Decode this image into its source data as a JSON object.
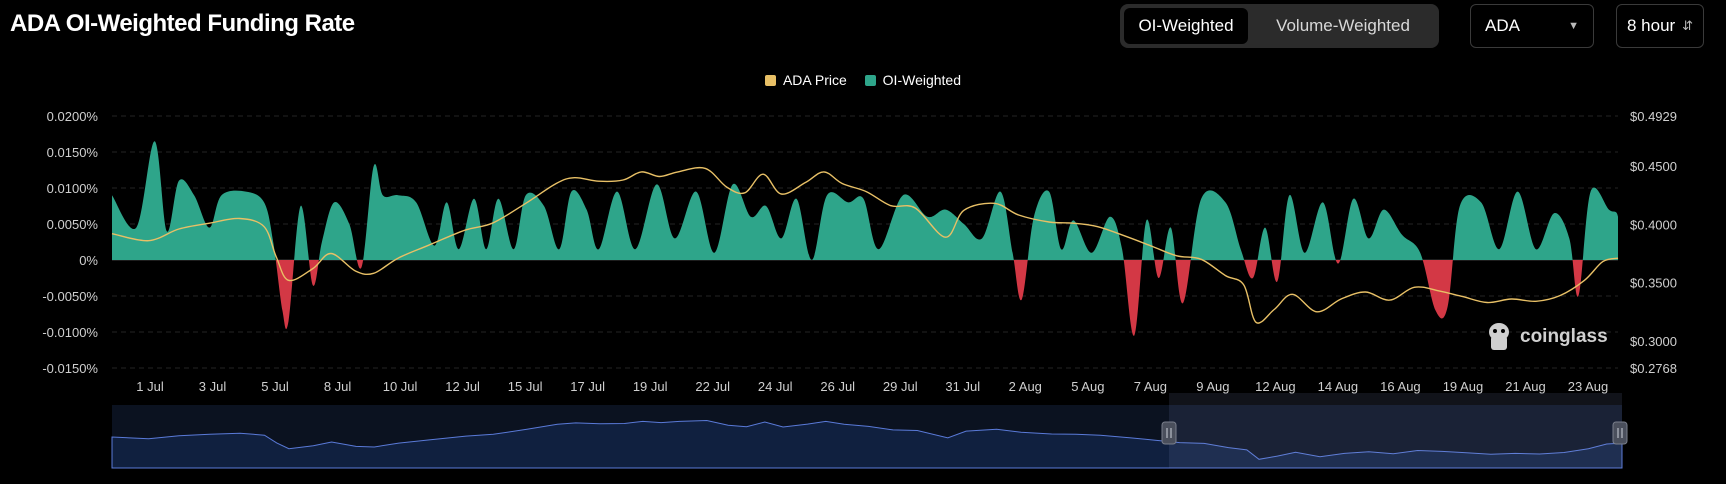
{
  "title": "ADA OI-Weighted Funding Rate",
  "toggle": {
    "options": [
      "OI-Weighted",
      "Volume-Weighted"
    ],
    "active": "OI-Weighted"
  },
  "symbol_select": {
    "value": "ADA"
  },
  "interval_select": {
    "value": "8 hour"
  },
  "watermark": "coinglass",
  "colors": {
    "positive": "#2ea58a",
    "negative": "#d33845",
    "price": "#e8c066",
    "navigator": "#5a7ad8"
  },
  "chart_data": {
    "type": "area",
    "legend": [
      "ADA Price",
      "OI-Weighted"
    ],
    "legend_placement": "top-center",
    "grid": true,
    "x_labels": [
      "1 Jul",
      "3 Jul",
      "5 Jul",
      "8 Jul",
      "10 Jul",
      "12 Jul",
      "15 Jul",
      "17 Jul",
      "19 Jul",
      "22 Jul",
      "24 Jul",
      "26 Jul",
      "29 Jul",
      "31 Jul",
      "2 Aug",
      "5 Aug",
      "7 Aug",
      "9 Aug",
      "12 Aug",
      "14 Aug",
      "16 Aug",
      "19 Aug",
      "21 Aug",
      "23 Aug"
    ],
    "y_left": {
      "ticks": [
        "0.0200%",
        "0.0150%",
        "0.0100%",
        "0.0050%",
        "0%",
        "-0.0050%",
        "-0.0100%",
        "-0.0150%"
      ],
      "min": -0.015,
      "max": 0.02
    },
    "y_right": {
      "ticks": [
        "$0.4929",
        "$0.4500",
        "$0.4000",
        "$0.3500",
        "$0.3000",
        "$0.2768"
      ],
      "min": 0.2768,
      "max": 0.4929
    },
    "series": [
      {
        "name": "OI-Weighted",
        "unit": "%",
        "points": [
          [
            0,
            0.009
          ],
          [
            0.8,
            0.0045
          ],
          [
            1.4,
            0.0165
          ],
          [
            1.8,
            0.004
          ],
          [
            2.2,
            0.011
          ],
          [
            2.7,
            0.009
          ],
          [
            3.2,
            0.0045
          ],
          [
            3.6,
            0.009
          ],
          [
            4.4,
            0.0095
          ],
          [
            5.0,
            0.008
          ],
          [
            5.3,
            0.0025
          ],
          [
            5.6,
            -0.007
          ],
          [
            5.8,
            -0.0085
          ],
          [
            6.2,
            0.0075
          ],
          [
            6.6,
            -0.0035
          ],
          [
            6.9,
            0.0025
          ],
          [
            7.3,
            0.008
          ],
          [
            7.8,
            0.005
          ],
          [
            8.2,
            -0.001
          ],
          [
            8.6,
            0.013
          ],
          [
            8.9,
            0.009
          ],
          [
            9.4,
            0.009
          ],
          [
            10.0,
            0.008
          ],
          [
            10.6,
            0.002
          ],
          [
            11.0,
            0.008
          ],
          [
            11.4,
            0.0015
          ],
          [
            11.9,
            0.0085
          ],
          [
            12.3,
            0.0015
          ],
          [
            12.7,
            0.0085
          ],
          [
            13.2,
            0.0015
          ],
          [
            13.6,
            0.009
          ],
          [
            14.2,
            0.0075
          ],
          [
            14.7,
            0.0015
          ],
          [
            15.1,
            0.0095
          ],
          [
            15.6,
            0.007
          ],
          [
            16.0,
            0.0015
          ],
          [
            16.6,
            0.0095
          ],
          [
            17.2,
            0.0015
          ],
          [
            17.9,
            0.0105
          ],
          [
            18.5,
            0.003
          ],
          [
            19.2,
            0.0095
          ],
          [
            19.8,
            0.001
          ],
          [
            20.4,
            0.0105
          ],
          [
            21.0,
            0.006
          ],
          [
            21.5,
            0.0075
          ],
          [
            22.0,
            0.003
          ],
          [
            22.5,
            0.0085
          ],
          [
            23.0,
            0
          ],
          [
            23.5,
            0.009
          ],
          [
            24.2,
            0.008
          ],
          [
            24.7,
            0.0085
          ],
          [
            25.2,
            0.0015
          ],
          [
            26.0,
            0.009
          ],
          [
            26.8,
            0.006
          ],
          [
            27.4,
            0.007
          ],
          [
            28.0,
            0.005
          ],
          [
            28.6,
            0.003
          ],
          [
            29.2,
            0.0095
          ],
          [
            29.6,
            0.001
          ],
          [
            29.9,
            -0.0055
          ],
          [
            30.3,
            0.006
          ],
          [
            30.8,
            0.0095
          ],
          [
            31.2,
            0.0015
          ],
          [
            31.6,
            0.0055
          ],
          [
            32.2,
            0.001
          ],
          [
            32.8,
            0.006
          ],
          [
            33.2,
            0.0015
          ],
          [
            33.6,
            -0.0105
          ],
          [
            34.0,
            0.0055
          ],
          [
            34.4,
            -0.0025
          ],
          [
            34.8,
            0.0045
          ],
          [
            35.2,
            -0.006
          ],
          [
            35.8,
            0.0085
          ],
          [
            36.6,
            0.008
          ],
          [
            37.1,
            0.0015
          ],
          [
            37.5,
            -0.0025
          ],
          [
            37.9,
            0.0045
          ],
          [
            38.3,
            -0.003
          ],
          [
            38.7,
            0.009
          ],
          [
            39.2,
            0.001
          ],
          [
            39.8,
            0.008
          ],
          [
            40.3,
            -0.0005
          ],
          [
            40.8,
            0.0085
          ],
          [
            41.3,
            0.003
          ],
          [
            41.8,
            0.007
          ],
          [
            42.4,
            0.0035
          ],
          [
            43.0,
            0.001
          ],
          [
            43.5,
            -0.007
          ],
          [
            43.9,
            -0.0065
          ],
          [
            44.3,
            0.0075
          ],
          [
            45.0,
            0.008
          ],
          [
            45.6,
            0.0015
          ],
          [
            46.2,
            0.0095
          ],
          [
            46.8,
            0.0015
          ],
          [
            47.4,
            0.0065
          ],
          [
            47.9,
            0.003
          ],
          [
            48.2,
            -0.005
          ],
          [
            48.6,
            0.0095
          ],
          [
            49.2,
            0.007
          ],
          [
            49.5,
            0.006
          ],
          [
            49.5,
            0
          ]
        ]
      },
      {
        "name": "ADA Price",
        "unit": "$",
        "points": [
          [
            0,
            0.392
          ],
          [
            1.2,
            0.386
          ],
          [
            2.2,
            0.396
          ],
          [
            3.2,
            0.401
          ],
          [
            4.2,
            0.405
          ],
          [
            5.0,
            0.398
          ],
          [
            5.4,
            0.372
          ],
          [
            5.8,
            0.352
          ],
          [
            6.6,
            0.362
          ],
          [
            7.2,
            0.375
          ],
          [
            8.0,
            0.36
          ],
          [
            8.6,
            0.358
          ],
          [
            9.4,
            0.371
          ],
          [
            10.4,
            0.382
          ],
          [
            11.6,
            0.395
          ],
          [
            12.5,
            0.401
          ],
          [
            13.6,
            0.418
          ],
          [
            14.6,
            0.435
          ],
          [
            15.2,
            0.44
          ],
          [
            16.0,
            0.437
          ],
          [
            16.8,
            0.438
          ],
          [
            17.4,
            0.445
          ],
          [
            18.0,
            0.441
          ],
          [
            18.6,
            0.445
          ],
          [
            19.5,
            0.448
          ],
          [
            20.2,
            0.432
          ],
          [
            20.8,
            0.427
          ],
          [
            21.4,
            0.443
          ],
          [
            22.0,
            0.426
          ],
          [
            22.8,
            0.436
          ],
          [
            23.4,
            0.445
          ],
          [
            24.0,
            0.435
          ],
          [
            24.8,
            0.428
          ],
          [
            25.6,
            0.416
          ],
          [
            26.4,
            0.414
          ],
          [
            27.4,
            0.389
          ],
          [
            28.0,
            0.412
          ],
          [
            29.0,
            0.418
          ],
          [
            29.8,
            0.408
          ],
          [
            30.8,
            0.402
          ],
          [
            31.6,
            0.401
          ],
          [
            32.4,
            0.398
          ],
          [
            33.4,
            0.389
          ],
          [
            34.2,
            0.381
          ],
          [
            35.0,
            0.373
          ],
          [
            35.8,
            0.37
          ],
          [
            36.6,
            0.356
          ],
          [
            37.2,
            0.348
          ],
          [
            37.6,
            0.316
          ],
          [
            38.2,
            0.327
          ],
          [
            38.8,
            0.34
          ],
          [
            39.6,
            0.325
          ],
          [
            40.4,
            0.336
          ],
          [
            41.2,
            0.342
          ],
          [
            42.0,
            0.335
          ],
          [
            42.8,
            0.346
          ],
          [
            43.6,
            0.343
          ],
          [
            44.4,
            0.338
          ],
          [
            45.2,
            0.333
          ],
          [
            46.0,
            0.336
          ],
          [
            46.8,
            0.334
          ],
          [
            47.6,
            0.339
          ],
          [
            48.4,
            0.352
          ],
          [
            49.0,
            0.368
          ],
          [
            49.5,
            0.371
          ]
        ]
      }
    ],
    "navigator": {
      "series": "ADA Price",
      "selection": [
        0.7,
        1.0
      ]
    }
  }
}
